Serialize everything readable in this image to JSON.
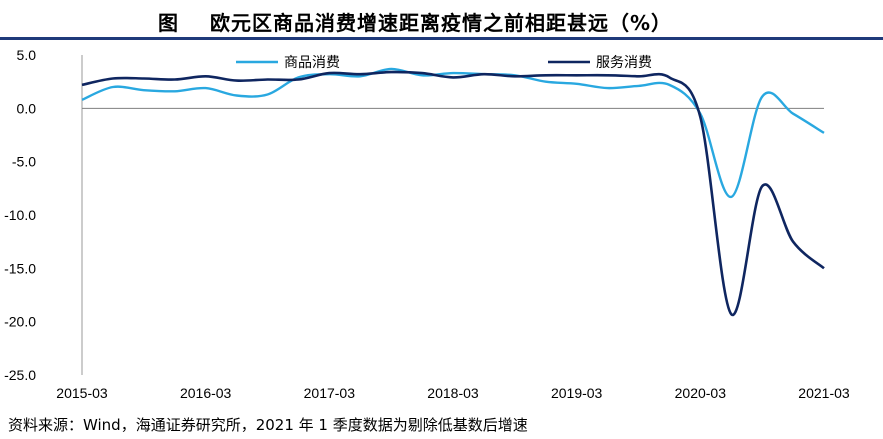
{
  "figure": {
    "label": "图",
    "title": "欧元区商品消费增速距离疫情之前相距甚远（%）",
    "source": "资料来源：Wind，海通证券研究所，2021 年 1 季度数据为剔除低基数后增速"
  },
  "chart_data": {
    "type": "line",
    "title": "欧元区商品消费增速距离疫情之前相距甚远（%）",
    "xlabel": "",
    "ylabel": "",
    "ylim": [
      -25,
      5
    ],
    "yticks": [
      "5.0",
      "0.0",
      "-5.0",
      "-10.0",
      "-15.0",
      "-20.0",
      "-25.0"
    ],
    "xticks": [
      "2015-03",
      "2016-03",
      "2017-03",
      "2018-03",
      "2019-03",
      "2020-03",
      "2021-03"
    ],
    "grid": false,
    "legend_position": "top",
    "x": [
      "2015-03",
      "2015-06",
      "2015-09",
      "2015-12",
      "2016-03",
      "2016-06",
      "2016-09",
      "2016-12",
      "2017-03",
      "2017-06",
      "2017-09",
      "2017-12",
      "2018-03",
      "2018-06",
      "2018-09",
      "2018-12",
      "2019-03",
      "2019-06",
      "2019-09",
      "2019-12",
      "2020-03",
      "2020-06",
      "2020-09",
      "2020-12",
      "2021-03"
    ],
    "series": [
      {
        "name": "商品消费",
        "color": "#29a8e0",
        "values": [
          0.8,
          2.0,
          1.7,
          1.6,
          1.9,
          1.2,
          1.3,
          2.9,
          3.2,
          3.0,
          3.7,
          3.1,
          3.3,
          3.2,
          3.1,
          2.5,
          2.3,
          1.9,
          2.1,
          2.2,
          -0.5,
          -8.3,
          1.1,
          -0.5,
          -2.3
        ]
      },
      {
        "name": "服务消费",
        "color": "#0f2660",
        "values": [
          2.2,
          2.8,
          2.8,
          2.7,
          3.0,
          2.6,
          2.7,
          2.7,
          3.3,
          3.2,
          3.4,
          3.3,
          2.9,
          3.2,
          3.0,
          3.1,
          3.1,
          3.1,
          3.0,
          2.9,
          -0.8,
          -19.3,
          -7.3,
          -12.5,
          -15.0
        ]
      }
    ]
  }
}
